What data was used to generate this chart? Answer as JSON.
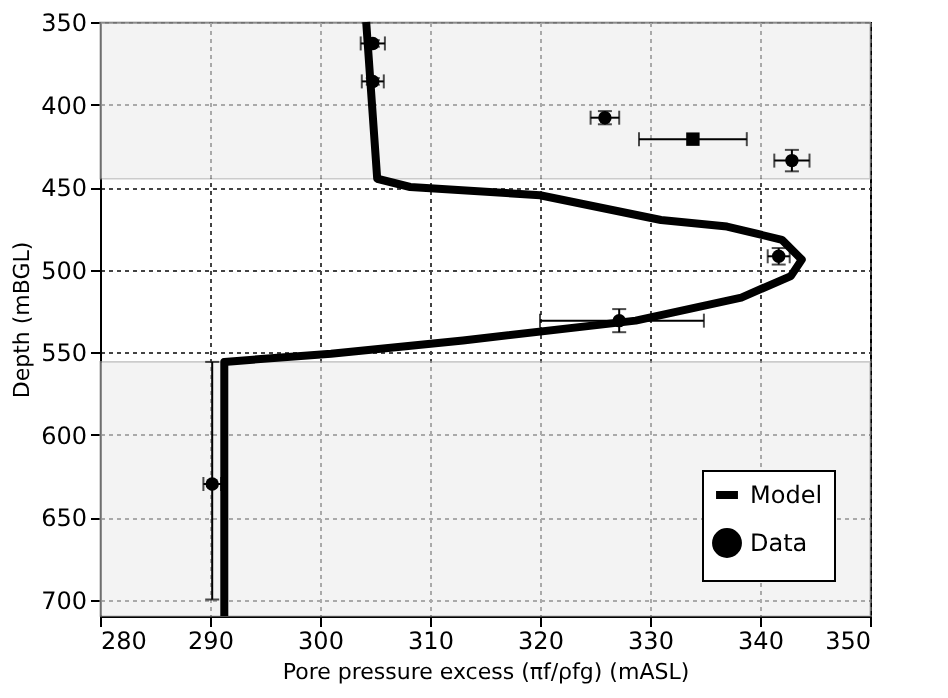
{
  "chart_data": {
    "type": "scatter",
    "xlabel": "Pore pressure excess (πf/ρfg) (mASL)",
    "ylabel": "Depth (mBGL)",
    "xlim": [
      280,
      350
    ],
    "xticks": [
      280,
      290,
      300,
      310,
      320,
      330,
      340,
      350
    ],
    "ylim": [
      710,
      350
    ],
    "yticks": [
      350,
      400,
      450,
      500,
      550,
      600,
      650,
      700
    ],
    "grid": true,
    "legend": "bottom right",
    "bands": [
      {
        "axis": "y",
        "from": 350,
        "to": 445,
        "color": "#ececec"
      },
      {
        "axis": "y",
        "from": 556,
        "to": 710,
        "color": "#ececec"
      }
    ],
    "series": [
      {
        "name": "Model",
        "type": "line",
        "line_style": "solid",
        "marker": "none",
        "color": "#000000",
        "x": [
          304.2,
          305.2,
          308.2,
          320,
          331,
          337,
          342,
          343.8,
          342.8,
          338.3,
          328.7,
          313,
          301,
          291.3,
          291.3
        ],
        "values": [
          350,
          445,
          450,
          455,
          470,
          474,
          482,
          494,
          504,
          517,
          531,
          543,
          551,
          556,
          710
        ]
      },
      {
        "name": "Data",
        "marker": "circle",
        "color": "#000000",
        "x": [
          304.8,
          304.8,
          325.9,
          342.9,
          341.7,
          327.2,
          290.2
        ],
        "values": [
          363,
          386,
          408,
          434,
          492,
          531,
          630
        ],
        "errors": [
          2,
          2,
          4,
          6.5,
          5,
          7,
          [
            556,
            700
          ]
        ],
        "xerrors": [
          1.1,
          1,
          1.3,
          1.6,
          1,
          [
            320,
            334.9
          ],
          0.8
        ]
      },
      {
        "color": "#000000",
        "marker": "square",
        "x": [
          333.9
        ],
        "values": [
          421
        ],
        "errors": [
          null
        ],
        "xerrors": [
          4.9
        ]
      }
    ]
  }
}
